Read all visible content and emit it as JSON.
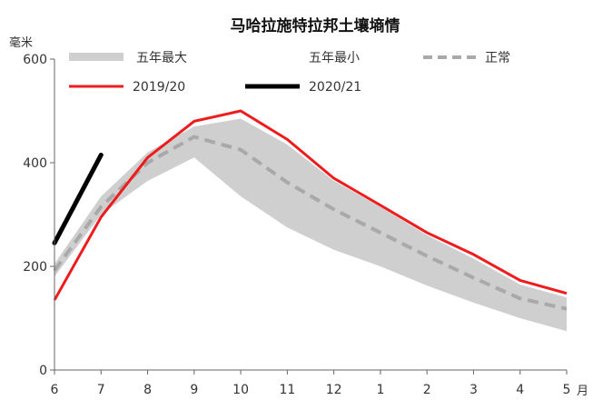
{
  "chart_data": {
    "type": "area",
    "title": "马哈拉施特拉邦土壤墒情",
    "ylabel_unit": "毫米",
    "xlabel_unit": "月",
    "categories": [
      "6",
      "7",
      "8",
      "9",
      "10",
      "11",
      "12",
      "1",
      "2",
      "3",
      "4",
      "5"
    ],
    "ylim": [
      0,
      600
    ],
    "yticks": [
      "0",
      "200",
      "400",
      "600"
    ],
    "grid": false,
    "legend_position": "top",
    "band": {
      "upper_name": "五年最大",
      "lower_name": "五年最小",
      "upper": [
        205,
        335,
        420,
        470,
        485,
        435,
        365,
        315,
        260,
        215,
        165,
        140
      ],
      "lower": [
        180,
        300,
        365,
        410,
        335,
        275,
        232,
        200,
        163,
        130,
        100,
        75
      ]
    },
    "series": [
      {
        "name": "正常",
        "values": [
          192,
          315,
          400,
          450,
          425,
          362,
          310,
          265,
          220,
          178,
          138,
          118
        ]
      },
      {
        "name": "2019/20",
        "values": [
          135,
          295,
          410,
          480,
          500,
          445,
          370,
          318,
          265,
          223,
          173,
          148
        ]
      },
      {
        "name": "2020/21",
        "values": [
          245,
          415,
          null,
          null,
          null,
          null,
          null,
          null,
          null,
          null,
          null,
          null
        ]
      }
    ],
    "colors": {
      "band": "#d0cfd0",
      "normal": "#a9a9a9",
      "y2019": "#ee1c1c",
      "y2020": "#000000",
      "axis": "#666666"
    }
  }
}
